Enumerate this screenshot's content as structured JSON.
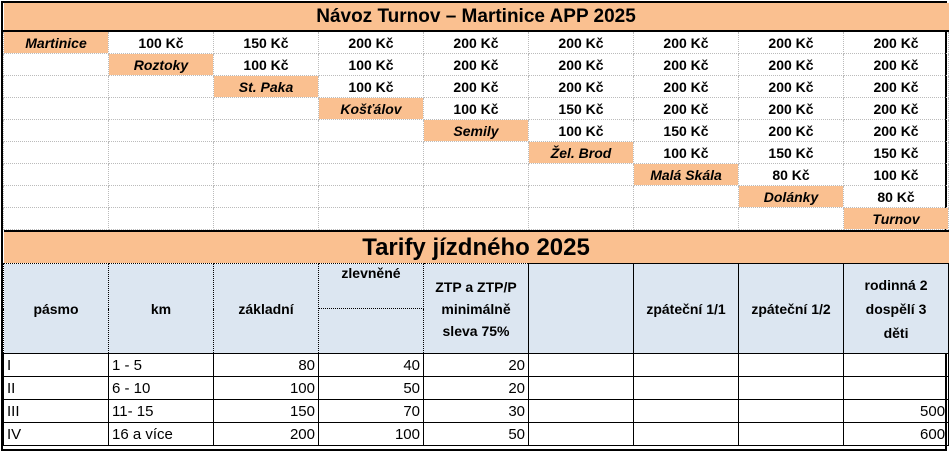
{
  "fare_matrix": {
    "title": "Návoz  Turnov – Martinice APP 2025",
    "rows": [
      {
        "station": "Martinice",
        "prices": [
          "100 Kč",
          "150 Kč",
          "200 Kč",
          "200 Kč",
          "200 Kč",
          "200 Kč",
          "200 Kč",
          "200 Kč"
        ]
      },
      {
        "station": "Roztoky",
        "prices": [
          "100 Kč",
          "100 Kč",
          "200 Kč",
          "200 Kč",
          "200 Kč",
          "200 Kč",
          "200 Kč"
        ]
      },
      {
        "station": "St. Paka",
        "prices": [
          "100 Kč",
          "200 Kč",
          "200 Kč",
          "200 Kč",
          "200 Kč",
          "200 Kč"
        ]
      },
      {
        "station": "Košťálov",
        "prices": [
          "100 Kč",
          "150 Kč",
          "200 Kč",
          "200 Kč",
          "200 Kč"
        ]
      },
      {
        "station": "Semily",
        "prices": [
          "100 Kč",
          "150 Kč",
          "200 Kč",
          "200 Kč"
        ]
      },
      {
        "station": "Žel. Brod",
        "prices": [
          "100 Kč",
          "150 Kč",
          "150 Kč"
        ]
      },
      {
        "station": "Malá Skála",
        "prices": [
          "80 Kč",
          "100 Kč"
        ]
      },
      {
        "station": "Dolánky",
        "prices": [
          "80 Kč"
        ]
      },
      {
        "station": "Turnov",
        "prices": []
      }
    ]
  },
  "tariffs": {
    "title": "Tarify jízdného 2025",
    "headers": {
      "pasmo": "pásmo",
      "km": "km",
      "zakladni": "základní",
      "zlevnene": "zlevněné",
      "ztp": "ZTP a ZTP/P minimálně sleva 75%",
      "zpatecni11": "zpáteční 1/1",
      "zpatecni12": "zpáteční 1/2",
      "rodinna": "rodinná 2 dospělí 3 děti"
    },
    "rows": [
      {
        "pasmo": "I",
        "km": "1 - 5",
        "zakladni": "80",
        "zlevnene": "40",
        "ztp": "20",
        "rodinna": ""
      },
      {
        "pasmo": "II",
        "km": "6 - 10",
        "zakladni": "100",
        "zlevnene": "50",
        "ztp": "20",
        "rodinna": ""
      },
      {
        "pasmo": "III",
        "km": "11- 15",
        "zakladni": "150",
        "zlevnene": "70",
        "ztp": "30",
        "rodinna": "500"
      },
      {
        "pasmo": "IV",
        "km": "16 a více",
        "zakladni": "200",
        "zlevnene": "100",
        "ztp": "50",
        "rodinna": "600"
      }
    ]
  },
  "colors": {
    "station_fill": "#fac090",
    "header_fill": "#dce6f1"
  }
}
